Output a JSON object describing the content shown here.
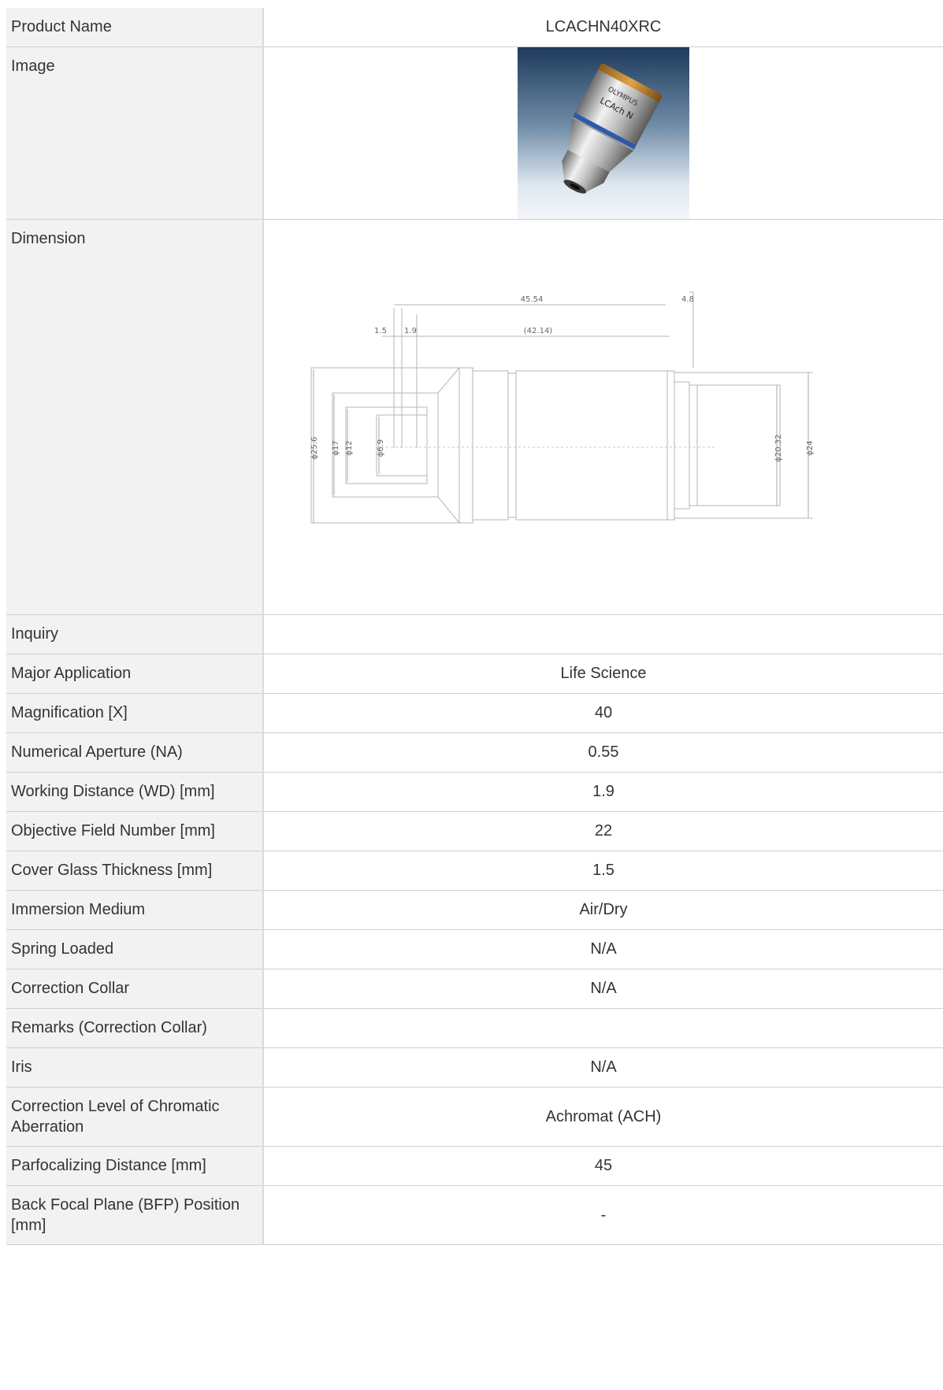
{
  "rows": [
    {
      "label": "Product Name",
      "value": "LCACHN40XRC"
    },
    {
      "label": "Image",
      "value": ""
    },
    {
      "label": "Dimension",
      "value": ""
    },
    {
      "label": "Inquiry",
      "value": ""
    },
    {
      "label": "Major Application",
      "value": "Life Science"
    },
    {
      "label": "Magnification [X]",
      "value": "40"
    },
    {
      "label": "Numerical Aperture (NA)",
      "value": "0.55"
    },
    {
      "label": "Working Distance (WD) [mm]",
      "value": "1.9"
    },
    {
      "label": "Objective Field Number [mm]",
      "value": "22"
    },
    {
      "label": "Cover Glass Thickness [mm]",
      "value": "1.5"
    },
    {
      "label": "Immersion Medium",
      "value": "Air/Dry"
    },
    {
      "label": "Spring Loaded",
      "value": "N/A"
    },
    {
      "label": "Correction Collar",
      "value": "N/A"
    },
    {
      "label": "Remarks (Correction Collar)",
      "value": ""
    },
    {
      "label": "Iris",
      "value": "N/A"
    },
    {
      "label": "Correction Level of Chromatic Aberration",
      "value": "Achromat (ACH)"
    },
    {
      "label": "Parfocalizing Distance [mm]",
      "value": "45"
    },
    {
      "label": "Back Focal Plane (BFP) Position [mm]",
      "value": "-"
    }
  ],
  "product_image": {
    "brand": "OLYMPUS",
    "lens_text": "LCAch N"
  },
  "dimension": {
    "length_total": "45.54",
    "length_rear": "4.8",
    "dim_a": "1.5",
    "dim_b": "1.9",
    "length_body": "(42.14)",
    "dia_outer": "ϕ25.6",
    "dia_17": "ϕ17",
    "dia_12": "ϕ12",
    "dia_6_9": "ϕ6.9",
    "dia_20_32": "ϕ20.32",
    "dia_24": "ϕ24"
  }
}
